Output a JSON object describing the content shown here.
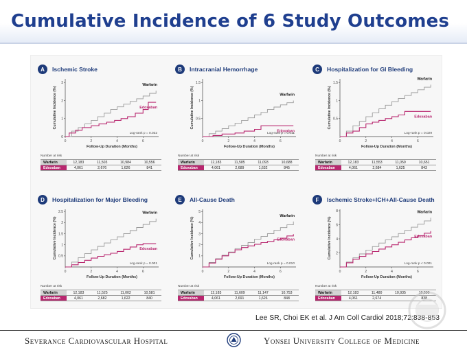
{
  "slide_title": "Cumulative Incidence of 6 Study Outcomes",
  "citation": "Lee SR, Choi EK et al. J Am Coll Cardiol 2018;72:838-853",
  "footer": {
    "left": "Severance Cardiovascular Hospital",
    "right": "Yonsei University College of Medicine"
  },
  "colors": {
    "warfarin": "#9a9a9a",
    "edoxaban": "#b8276f",
    "badge": "#1e3b7a",
    "title": "#1f3f8f"
  },
  "chart_data": [
    {
      "type": "line",
      "panel": "A",
      "title": "Ischemic Stroke",
      "xlabel": "Follow-Up Duration (Months)",
      "ylabel": "Cumulative Incidence (%)",
      "xlim": [
        0,
        7.2
      ],
      "ylim": [
        0,
        3.2
      ],
      "xticks": [
        0,
        2,
        4,
        6
      ],
      "yticks": [
        0,
        1,
        2,
        3
      ],
      "pvalue": "Log-rank p = 0.032",
      "series": [
        {
          "name": "Warfarin",
          "x": [
            0,
            0.5,
            1,
            1.5,
            2,
            2.5,
            3,
            3.5,
            4,
            4.5,
            5,
            5.5,
            6,
            6.5,
            7
          ],
          "y": [
            0,
            0.3,
            0.5,
            0.7,
            0.9,
            1.1,
            1.3,
            1.5,
            1.65,
            1.8,
            1.95,
            2.1,
            2.25,
            2.4,
            2.55
          ]
        },
        {
          "name": "Edoxaban",
          "x": [
            0,
            0.3,
            0.8,
            1.3,
            2,
            2.6,
            3.2,
            3.8,
            4.3,
            4.8,
            5.4,
            6,
            6.4,
            7
          ],
          "y": [
            0,
            0.2,
            0.35,
            0.5,
            0.6,
            0.7,
            0.8,
            0.9,
            1.0,
            1.1,
            1.3,
            1.5,
            1.9,
            1.9
          ]
        }
      ],
      "risk_table": {
        "title": "Number at risk",
        "rows": [
          {
            "label": "Warfarin",
            "values": [
              "12,183",
              "11,503",
              "10,984",
              "10,556"
            ]
          },
          {
            "label": "Edoxaban",
            "values": [
              "4,061",
              "2,676",
              "1,626",
              "841"
            ]
          }
        ]
      }
    },
    {
      "type": "line",
      "panel": "B",
      "title": "Intracranial Hemorrhage",
      "xlabel": "Follow-Up Duration (Months)",
      "ylabel": "Cumulative Incidence (%)",
      "xlim": [
        0,
        7.2
      ],
      "ylim": [
        0,
        1.6
      ],
      "xticks": [
        0,
        2,
        4,
        6
      ],
      "yticks": [
        0.5,
        1.0,
        1.5
      ],
      "pvalue": "Log-rank p = 0.011",
      "series": [
        {
          "name": "Warfarin",
          "x": [
            0,
            0.5,
            1,
            1.5,
            2,
            2.5,
            3,
            3.5,
            4,
            4.5,
            5,
            5.5,
            6,
            6.5,
            7
          ],
          "y": [
            0,
            0.08,
            0.15,
            0.22,
            0.3,
            0.37,
            0.45,
            0.52,
            0.6,
            0.67,
            0.75,
            0.82,
            0.88,
            0.94,
            1.0
          ]
        },
        {
          "name": "Edoxaban",
          "x": [
            0,
            0.8,
            1.5,
            2.5,
            3.2,
            4,
            4.5,
            5.5,
            6.5,
            7
          ],
          "y": [
            0,
            0.03,
            0.07,
            0.1,
            0.15,
            0.2,
            0.3,
            0.3,
            0.3,
            0.3
          ]
        }
      ],
      "risk_table": {
        "title": "Number at risk",
        "rows": [
          {
            "label": "Warfarin",
            "values": [
              "12,183",
              "11,585",
              "11,093",
              "10,688"
            ]
          },
          {
            "label": "Edoxaban",
            "values": [
              "4,061",
              "2,689",
              "1,632",
              "845"
            ]
          }
        ]
      }
    },
    {
      "type": "line",
      "panel": "C",
      "title": "Hospitalization for GI Bleeding",
      "xlabel": "Follow-Up Duration (Months)",
      "ylabel": "Cumulative Incidence (%)",
      "xlim": [
        0,
        7.2
      ],
      "ylim": [
        0,
        1.6
      ],
      "xticks": [
        0,
        2,
        4,
        6
      ],
      "yticks": [
        0.5,
        1.0,
        1.5
      ],
      "pvalue": "Log-rank p = 0.029",
      "series": [
        {
          "name": "Warfarin",
          "x": [
            0,
            0.5,
            1,
            1.5,
            2,
            2.5,
            3,
            3.5,
            4,
            4.5,
            5,
            5.5,
            6,
            6.5,
            7
          ],
          "y": [
            0,
            0.15,
            0.3,
            0.42,
            0.55,
            0.66,
            0.77,
            0.87,
            0.97,
            1.06,
            1.14,
            1.22,
            1.3,
            1.37,
            1.44
          ]
        },
        {
          "name": "Edoxaban",
          "x": [
            0,
            0.5,
            1,
            1.5,
            2,
            2.5,
            3,
            3.5,
            4,
            4.5,
            5,
            5.5,
            6,
            6.5,
            7
          ],
          "y": [
            0,
            0.1,
            0.15,
            0.25,
            0.35,
            0.4,
            0.45,
            0.5,
            0.55,
            0.6,
            0.7,
            0.7,
            0.7,
            0.7,
            0.7
          ]
        }
      ],
      "risk_table": {
        "title": "Number at risk",
        "rows": [
          {
            "label": "Warfarin",
            "values": [
              "12,183",
              "11,553",
              "11,059",
              "10,651"
            ]
          },
          {
            "label": "Edoxaban",
            "values": [
              "4,061",
              "2,684",
              "1,625",
              "843"
            ]
          }
        ]
      }
    },
    {
      "type": "line",
      "panel": "D",
      "title": "Hospitalization for Major Bleeding",
      "xlabel": "Follow-Up Duration (Months)",
      "ylabel": "Cumulative Incidence (%)",
      "xlim": [
        0,
        7.2
      ],
      "ylim": [
        0,
        2.6
      ],
      "xticks": [
        0,
        2,
        4,
        6
      ],
      "yticks": [
        0.5,
        1.0,
        1.5,
        2.0,
        2.5
      ],
      "pvalue": "Log-rank p = 0.001",
      "series": [
        {
          "name": "Warfarin",
          "x": [
            0,
            0.5,
            1,
            1.5,
            2,
            2.5,
            3,
            3.5,
            4,
            4.5,
            5,
            5.5,
            6,
            6.5,
            7
          ],
          "y": [
            0,
            0.22,
            0.42,
            0.6,
            0.77,
            0.93,
            1.08,
            1.22,
            1.36,
            1.5,
            1.64,
            1.78,
            1.92,
            2.05,
            2.18
          ]
        },
        {
          "name": "Edoxaban",
          "x": [
            0,
            0.5,
            1,
            1.5,
            2,
            2.5,
            3,
            3.5,
            4,
            4.5,
            5,
            5.5,
            6,
            6.5,
            7
          ],
          "y": [
            0,
            0.1,
            0.2,
            0.3,
            0.4,
            0.48,
            0.55,
            0.62,
            0.7,
            0.8,
            0.9,
            1.0,
            1.05,
            1.05,
            1.05
          ]
        }
      ],
      "risk_table": {
        "title": "Number at risk",
        "rows": [
          {
            "label": "Warfarin",
            "values": [
              "12,183",
              "11,525",
              "11,002",
              "10,581"
            ]
          },
          {
            "label": "Edoxaban",
            "values": [
              "4,061",
              "2,682",
              "1,622",
              "840"
            ]
          }
        ]
      }
    },
    {
      "type": "line",
      "panel": "E",
      "title": "All-Cause Death",
      "xlabel": "Follow-Up Duration (Months)",
      "ylabel": "Cumulative Incidence (%)",
      "xlim": [
        0,
        7.2
      ],
      "ylim": [
        0,
        5.2
      ],
      "xticks": [
        0,
        2,
        4,
        6
      ],
      "yticks": [
        1,
        2,
        3,
        4,
        5
      ],
      "pvalue": "Log-rank p = 0.010",
      "series": [
        {
          "name": "Warfarin",
          "x": [
            0,
            0.5,
            1,
            1.5,
            2,
            2.5,
            3,
            3.5,
            4,
            4.5,
            5,
            5.5,
            6,
            6.5,
            7
          ],
          "y": [
            0,
            0.4,
            0.75,
            1.05,
            1.35,
            1.65,
            1.95,
            2.2,
            2.5,
            2.75,
            3.0,
            3.3,
            3.55,
            3.8,
            4.1
          ]
        },
        {
          "name": "Edoxaban",
          "x": [
            0,
            0.5,
            1,
            1.5,
            2,
            2.5,
            3,
            3.5,
            4,
            4.5,
            5,
            5.5,
            6,
            6.5,
            7
          ],
          "y": [
            0,
            0.35,
            0.7,
            1.0,
            1.3,
            1.55,
            1.75,
            1.9,
            2.05,
            2.2,
            2.3,
            2.45,
            2.6,
            2.8,
            2.95
          ]
        }
      ],
      "risk_table": {
        "title": "Number at risk",
        "rows": [
          {
            "label": "Warfarin",
            "values": [
              "12,183",
              "11,609",
              "11,147",
              "10,753"
            ]
          },
          {
            "label": "Edoxaban",
            "values": [
              "4,061",
              "2,691",
              "1,626",
              "848"
            ]
          }
        ]
      }
    },
    {
      "type": "line",
      "panel": "F",
      "title": "Ischemic Stroke+ICH+All-Cause Death",
      "xlabel": "Follow-Up Duration (Months)",
      "ylabel": "Cumulative Incidence (%)",
      "xlim": [
        0,
        7.2
      ],
      "ylim": [
        0,
        8.2
      ],
      "xticks": [
        0,
        2,
        4,
        6
      ],
      "yticks": [
        2,
        4,
        6,
        8
      ],
      "pvalue": "Log-rank p < 0.001",
      "series": [
        {
          "name": "Warfarin",
          "x": [
            0,
            0.5,
            1,
            1.5,
            2,
            2.5,
            3,
            3.5,
            4,
            4.5,
            5,
            5.5,
            6,
            6.5,
            7
          ],
          "y": [
            0,
            0.7,
            1.3,
            1.85,
            2.4,
            2.9,
            3.4,
            3.85,
            4.3,
            4.75,
            5.2,
            5.65,
            6.1,
            6.55,
            7.0
          ]
        },
        {
          "name": "Edoxaban",
          "x": [
            0,
            0.5,
            1,
            1.5,
            2,
            2.5,
            3,
            3.5,
            4,
            4.5,
            5,
            5.5,
            6,
            6.5,
            7
          ],
          "y": [
            0,
            0.6,
            1.1,
            1.5,
            1.85,
            2.2,
            2.55,
            2.85,
            3.15,
            3.5,
            3.85,
            4.15,
            4.45,
            4.8,
            5.1
          ]
        }
      ],
      "risk_table": {
        "title": "Number at risk",
        "rows": [
          {
            "label": "Warfarin",
            "values": [
              "12,183",
              "11,480",
              "10,935",
              "10,500"
            ]
          },
          {
            "label": "Edoxaban",
            "values": [
              "4,061",
              "2,674",
              "",
              "838"
            ]
          }
        ]
      }
    }
  ]
}
